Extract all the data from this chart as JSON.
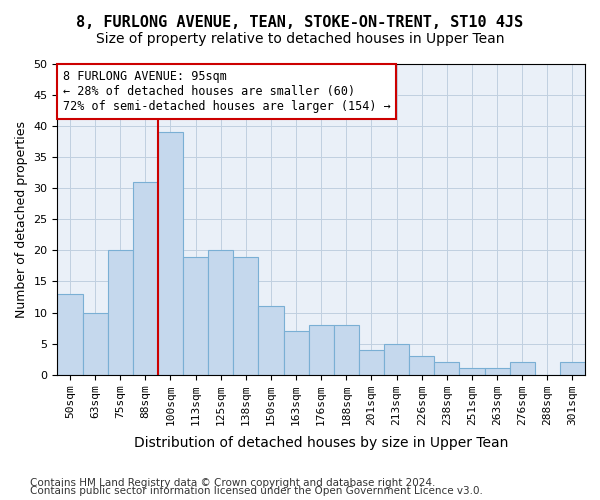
{
  "title": "8, FURLONG AVENUE, TEAN, STOKE-ON-TRENT, ST10 4JS",
  "subtitle": "Size of property relative to detached houses in Upper Tean",
  "xlabel": "Distribution of detached houses by size in Upper Tean",
  "ylabel": "Number of detached properties",
  "bar_values": [
    13,
    10,
    20,
    31,
    39,
    19,
    20,
    19,
    11,
    7,
    8,
    8,
    4,
    5,
    3,
    2,
    1,
    1,
    2,
    0,
    2
  ],
  "x_tick_labels": [
    "50sqm",
    "63sqm",
    "75sqm",
    "88sqm",
    "100sqm",
    "113sqm",
    "125sqm",
    "138sqm",
    "150sqm",
    "163sqm",
    "176sqm",
    "188sqm",
    "201sqm",
    "213sqm",
    "226sqm",
    "238sqm",
    "251sqm",
    "263sqm",
    "276sqm",
    "288sqm",
    "301sqm"
  ],
  "bar_color": "#c5d8ed",
  "bar_edge_color": "#7aafd4",
  "vline_x": 3.5,
  "vline_color": "#cc0000",
  "annotation_box_text": "8 FURLONG AVENUE: 95sqm\n← 28% of detached houses are smaller (60)\n72% of semi-detached houses are larger (154) →",
  "annotation_box_color": "#cc0000",
  "ylim": [
    0,
    50
  ],
  "yticks": [
    0,
    5,
    10,
    15,
    20,
    25,
    30,
    35,
    40,
    45,
    50
  ],
  "grid_color": "#c0cfe0",
  "bg_color": "#eaf0f8",
  "footer_line1": "Contains HM Land Registry data © Crown copyright and database right 2024.",
  "footer_line2": "Contains public sector information licensed under the Open Government Licence v3.0.",
  "title_fontsize": 11,
  "subtitle_fontsize": 10,
  "xlabel_fontsize": 10,
  "ylabel_fontsize": 9,
  "tick_fontsize": 8,
  "footer_fontsize": 7.5,
  "annotation_fontsize": 8.5
}
